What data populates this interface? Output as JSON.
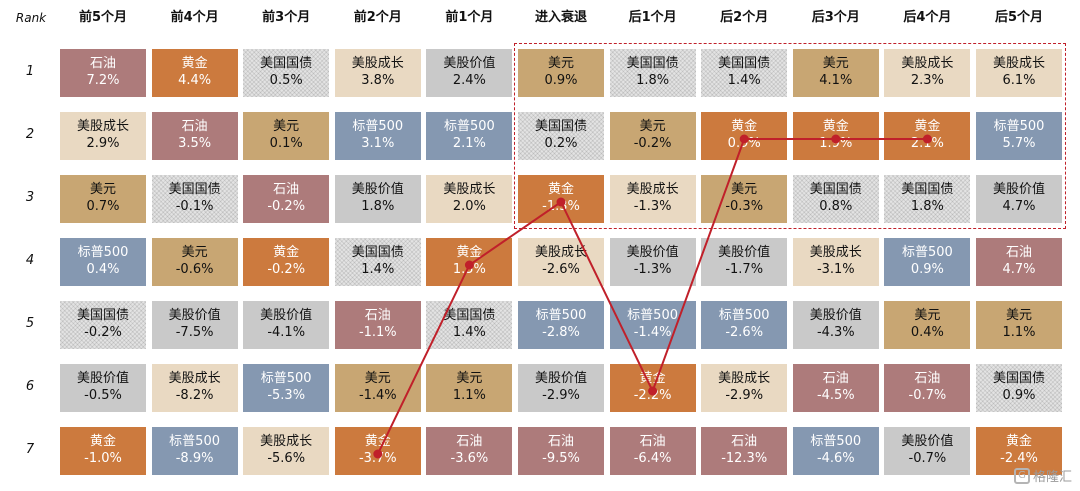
{
  "chart_data": {
    "type": "table",
    "corner_label": "Rank",
    "columns": [
      "前5个月",
      "前4个月",
      "前3个月",
      "前2个月",
      "前1个月",
      "进入衰退",
      "后1个月",
      "后2个月",
      "后3个月",
      "后4个月",
      "后5个月"
    ],
    "ranks": [
      "1",
      "2",
      "3",
      "4",
      "5",
      "6",
      "7"
    ],
    "colors": {
      "黄金": "#cc7a3e",
      "石油": "#ad7b7b",
      "美元": "#c8a673",
      "美股成长": "#e9d9c2",
      "美股价值": "#c9c9c9",
      "标普500": "#8598b1",
      "美国国债": "#e3e3e3"
    },
    "light_text": [
      "黄金",
      "石油",
      "标普500"
    ],
    "patterned": [
      "美国国债"
    ],
    "grid": [
      [
        [
          "石油",
          "7.2%"
        ],
        [
          "美股成长",
          "2.9%"
        ],
        [
          "美元",
          "0.7%"
        ],
        [
          "标普500",
          "0.4%"
        ],
        [
          "美国国债",
          "-0.2%"
        ],
        [
          "美股价值",
          "-0.5%"
        ],
        [
          "黄金",
          "-1.0%"
        ]
      ],
      [
        [
          "黄金",
          "4.4%"
        ],
        [
          "石油",
          "3.5%"
        ],
        [
          "美国国债",
          "-0.1%"
        ],
        [
          "美元",
          "-0.6%"
        ],
        [
          "美股价值",
          "-7.5%"
        ],
        [
          "美股成长",
          "-8.2%"
        ],
        [
          "标普500",
          "-8.9%"
        ]
      ],
      [
        [
          "美国国债",
          "0.5%"
        ],
        [
          "美元",
          "0.1%"
        ],
        [
          "石油",
          "-0.2%"
        ],
        [
          "黄金",
          "-0.2%"
        ],
        [
          "美股价值",
          "-4.1%"
        ],
        [
          "标普500",
          "-5.3%"
        ],
        [
          "美股成长",
          "-5.6%"
        ]
      ],
      [
        [
          "美股成长",
          "3.8%"
        ],
        [
          "标普500",
          "3.1%"
        ],
        [
          "美股价值",
          "1.8%"
        ],
        [
          "美国国债",
          "1.4%"
        ],
        [
          "石油",
          "-1.1%"
        ],
        [
          "美元",
          "-1.4%"
        ],
        [
          "黄金",
          "-3.7%"
        ]
      ],
      [
        [
          "美股价值",
          "2.4%"
        ],
        [
          "标普500",
          "2.1%"
        ],
        [
          "美股成长",
          "2.0%"
        ],
        [
          "黄金",
          "1.5%"
        ],
        [
          "美国国债",
          "1.4%"
        ],
        [
          "美元",
          "1.1%"
        ],
        [
          "石油",
          "-3.6%"
        ]
      ],
      [
        [
          "美元",
          "0.9%"
        ],
        [
          "美国国债",
          "0.2%"
        ],
        [
          "黄金",
          "-1.3%"
        ],
        [
          "美股成长",
          "-2.6%"
        ],
        [
          "标普500",
          "-2.8%"
        ],
        [
          "美股价值",
          "-2.9%"
        ],
        [
          "石油",
          "-9.5%"
        ]
      ],
      [
        [
          "美国国债",
          "1.8%"
        ],
        [
          "美元",
          "-0.2%"
        ],
        [
          "美股成长",
          "-1.3%"
        ],
        [
          "美股价值",
          "-1.3%"
        ],
        [
          "标普500",
          "-1.4%"
        ],
        [
          "黄金",
          "-2.2%"
        ],
        [
          "石油",
          "-6.4%"
        ]
      ],
      [
        [
          "美国国债",
          "1.4%"
        ],
        [
          "黄金",
          "0.9%"
        ],
        [
          "美元",
          "-0.3%"
        ],
        [
          "美股价值",
          "-1.7%"
        ],
        [
          "标普500",
          "-2.6%"
        ],
        [
          "美股成长",
          "-2.9%"
        ],
        [
          "石油",
          "-12.3%"
        ]
      ],
      [
        [
          "美元",
          "4.1%"
        ],
        [
          "黄金",
          "1.9%"
        ],
        [
          "美国国债",
          "0.8%"
        ],
        [
          "美股成长",
          "-3.1%"
        ],
        [
          "美股价值",
          "-4.3%"
        ],
        [
          "石油",
          "-4.5%"
        ],
        [
          "标普500",
          "-4.6%"
        ]
      ],
      [
        [
          "美股成长",
          "2.3%"
        ],
        [
          "黄金",
          "2.1%"
        ],
        [
          "美国国债",
          "1.8%"
        ],
        [
          "标普500",
          "0.9%"
        ],
        [
          "美元",
          "0.4%"
        ],
        [
          "石油",
          "-0.7%"
        ],
        [
          "美股价值",
          "-0.7%"
        ]
      ],
      [
        [
          "美股成长",
          "6.1%"
        ],
        [
          "标普500",
          "5.7%"
        ],
        [
          "美股价值",
          "4.7%"
        ],
        [
          "石油",
          "4.7%"
        ],
        [
          "美元",
          "1.1%"
        ],
        [
          "美国国债",
          "0.9%"
        ],
        [
          "黄金",
          "-2.4%"
        ]
      ]
    ],
    "gold_path": {
      "asset": "黄金",
      "line_color": "#c0202a",
      "from_column": 3,
      "ranks": [
        7,
        4,
        3,
        6,
        2,
        2,
        2
      ]
    },
    "highlight": {
      "columns_from": 5,
      "columns_to": 10,
      "ranks_from": 1,
      "ranks_to": 3,
      "color": "#c0202a",
      "style": "dashed"
    }
  },
  "logo": {
    "text": "格隆汇",
    "mark": "G"
  }
}
